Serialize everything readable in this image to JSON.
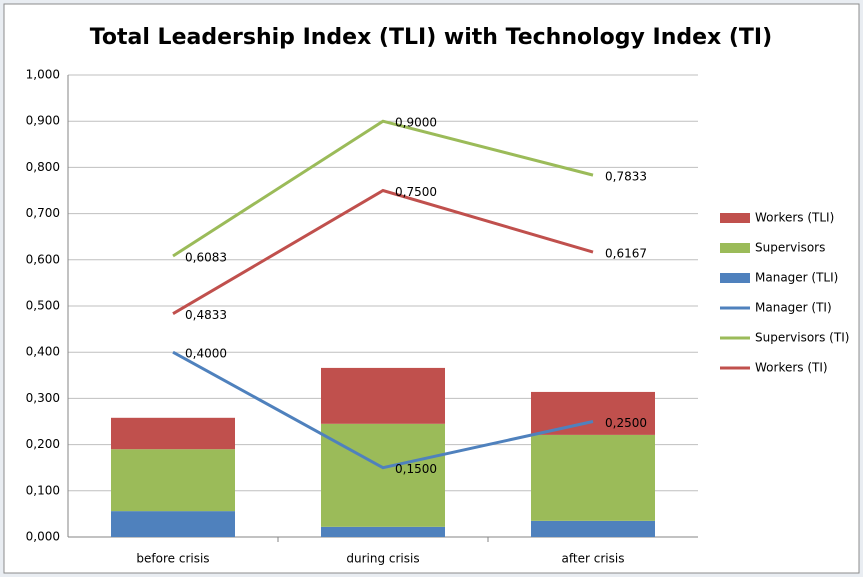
{
  "chart_data": {
    "type": "bar",
    "title": "Total Leadership Index (TLI) with Technology Index (TI)",
    "categories": [
      "before crisis",
      "during crisis",
      "after crisis"
    ],
    "ylim": [
      0,
      1
    ],
    "yticks": [
      {
        "value": 0,
        "label": "0,000"
      },
      {
        "value": 0.1,
        "label": "0,100"
      },
      {
        "value": 0.2,
        "label": "0,200"
      },
      {
        "value": 0.3,
        "label": "0,300"
      },
      {
        "value": 0.4,
        "label": "0,400"
      },
      {
        "value": 0.5,
        "label": "0,500"
      },
      {
        "value": 0.6,
        "label": "0,600"
      },
      {
        "value": 0.7,
        "label": "0,700"
      },
      {
        "value": 0.8,
        "label": "0,800"
      },
      {
        "value": 0.9,
        "label": "0,900"
      },
      {
        "value": 1,
        "label": "1,000"
      }
    ],
    "grid": true,
    "legend": "right",
    "stacked": true,
    "series": [
      {
        "name": "Manager (TLI)",
        "type": "bar",
        "color": "#4f81bd",
        "values": [
          0.056,
          0.022,
          0.035
        ]
      },
      {
        "name": "Supervisors",
        "type": "bar",
        "color": "#9bbb59",
        "values": [
          0.134,
          0.223,
          0.186
        ]
      },
      {
        "name": "Workers (TLI)",
        "type": "bar",
        "color": "#c0504d",
        "values": [
          0.068,
          0.121,
          0.093
        ]
      },
      {
        "name": "Manager (TI)",
        "type": "line",
        "color": "#4f81bd",
        "values": [
          0.4,
          0.15,
          0.25
        ],
        "value_labels": [
          "0,4000",
          "0,1500",
          "0,2500"
        ]
      },
      {
        "name": "Supervisors (TI)",
        "type": "line",
        "color": "#9bbb59",
        "values": [
          0.6083,
          0.9,
          0.7833
        ],
        "value_labels": [
          "0,6083",
          "0,9000",
          "0,7833"
        ]
      },
      {
        "name": "Workers (TI)",
        "type": "line",
        "color": "#c0504d",
        "values": [
          0.4833,
          0.75,
          0.6167
        ],
        "value_labels": [
          "0,4833",
          "0,7500",
          "0,6167"
        ]
      }
    ]
  }
}
